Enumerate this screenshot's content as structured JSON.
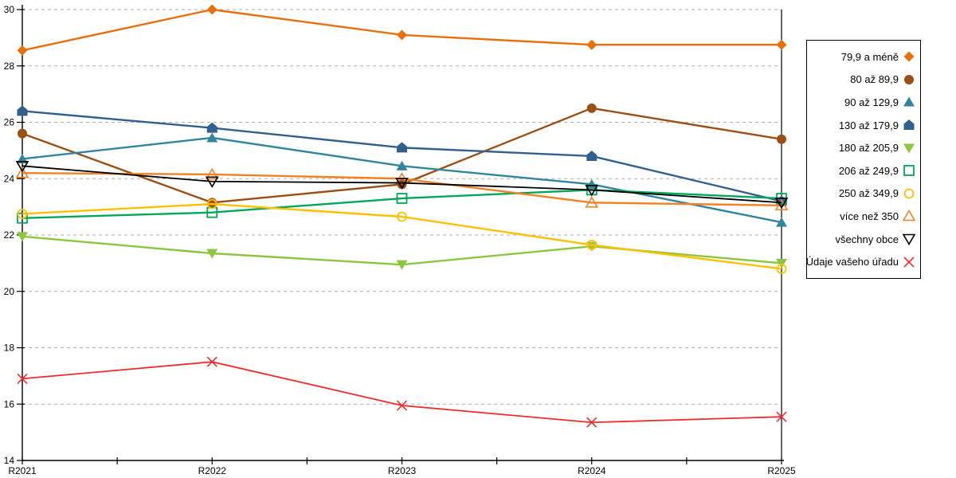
{
  "chart_data": {
    "type": "line",
    "categories": [
      "R2021",
      "R2022",
      "R2023",
      "R2024",
      "R2025"
    ],
    "series": [
      {
        "name": "79,9 a méně",
        "color": "#E8700A",
        "marker": "diamond-filled",
        "values": [
          28.55,
          30.0,
          29.1,
          28.75,
          28.75
        ]
      },
      {
        "name": "80 až 89,9",
        "color": "#9C4F12",
        "marker": "circle-filled",
        "values": [
          25.6,
          23.15,
          23.8,
          26.5,
          25.4
        ]
      },
      {
        "name": "90 až 129,9",
        "color": "#31859C",
        "marker": "triangle-up-filled",
        "values": [
          24.7,
          25.45,
          24.45,
          23.8,
          22.45
        ]
      },
      {
        "name": "130 až 179,9",
        "color": "#31608F",
        "marker": "pentagon-filled",
        "values": [
          26.4,
          25.8,
          25.1,
          24.8,
          23.2
        ]
      },
      {
        "name": "180 až 205,9",
        "color": "#8CC63F",
        "marker": "triangle-down-filled",
        "values": [
          21.95,
          21.35,
          20.95,
          21.6,
          21.0
        ]
      },
      {
        "name": "206 až 249,9",
        "color": "#00A859",
        "marker": "square-open",
        "values": [
          22.6,
          22.8,
          23.3,
          23.6,
          23.3
        ]
      },
      {
        "name": "250 až 349,9",
        "color": "#FFC000",
        "marker": "circle-open",
        "values": [
          22.75,
          23.1,
          22.65,
          21.65,
          20.8
        ]
      },
      {
        "name": "více než 350",
        "color": "#F08223",
        "marker": "triangle-up-open",
        "values": [
          24.2,
          24.15,
          24.0,
          23.15,
          23.05
        ]
      },
      {
        "name": "všechny obce",
        "color": "#000000",
        "marker": "triangle-down-open",
        "values": [
          24.45,
          23.9,
          23.85,
          23.6,
          23.15
        ]
      },
      {
        "name": "Údaje vašeho úřadu",
        "color": "#EE2C2C",
        "marker": "x",
        "values": [
          16.9,
          17.5,
          15.95,
          15.35,
          15.55
        ]
      }
    ],
    "title": "",
    "xlabel": "",
    "ylabel": "",
    "ylim": [
      14,
      30
    ],
    "ytick_step": 2,
    "grid": "horizontal-dashed",
    "grid_color": "#ADADAD",
    "axis_color": "#000000",
    "x_minor_ticks": true,
    "right_border": true,
    "legend_position": "right"
  }
}
